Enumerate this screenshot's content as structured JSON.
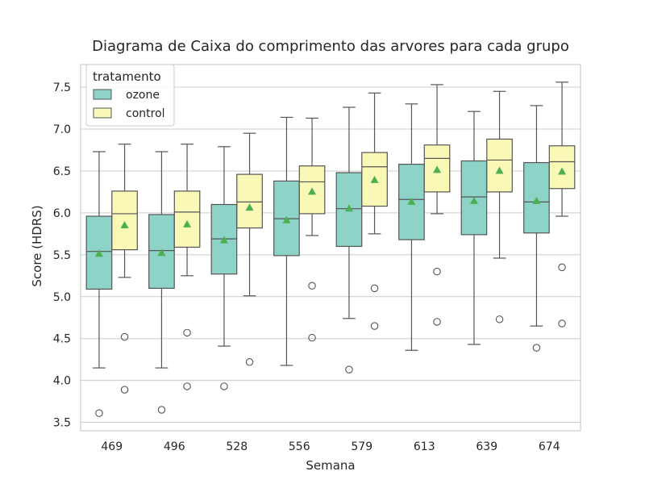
{
  "chart_data": {
    "type": "boxplot",
    "title": "Diagrama de Caixa do comprimento das arvores para cada grupo",
    "xlabel": "Semana",
    "ylabel": "Score (HDRS)",
    "ylim": [
      3.4,
      7.77
    ],
    "yticks": [
      "3.5",
      "4.0",
      "4.5",
      "5.0",
      "5.5",
      "6.0",
      "6.5",
      "7.0",
      "7.5"
    ],
    "grid": "horizontal",
    "legend_placement": "top-left",
    "legend_title": "tratamento",
    "categories": [
      "469",
      "496",
      "528",
      "556",
      "579",
      "613",
      "639",
      "674"
    ],
    "series": [
      {
        "name": "ozone",
        "color": "#8dd3c7",
        "boxes": [
          {
            "whislo": 4.15,
            "q1": 5.09,
            "med": 5.54,
            "q3": 5.96,
            "whishi": 6.73,
            "mean": 5.51,
            "fliers": [
              3.61
            ]
          },
          {
            "whislo": 4.15,
            "q1": 5.1,
            "med": 5.55,
            "q3": 5.98,
            "whishi": 6.73,
            "mean": 5.52,
            "fliers": [
              3.65
            ]
          },
          {
            "whislo": 4.41,
            "q1": 5.27,
            "med": 5.69,
            "q3": 6.1,
            "whishi": 6.79,
            "mean": 5.67,
            "fliers": [
              3.93
            ]
          },
          {
            "whislo": 4.18,
            "q1": 5.49,
            "med": 5.93,
            "q3": 6.38,
            "whishi": 7.14,
            "mean": 5.91,
            "fliers": []
          },
          {
            "whislo": 4.74,
            "q1": 5.6,
            "med": 6.05,
            "q3": 6.48,
            "whishi": 7.26,
            "mean": 6.05,
            "fliers": [
              4.13
            ]
          },
          {
            "whislo": 4.36,
            "q1": 5.68,
            "med": 6.16,
            "q3": 6.58,
            "whishi": 7.3,
            "mean": 6.13,
            "fliers": []
          },
          {
            "whislo": 4.43,
            "q1": 5.74,
            "med": 6.19,
            "q3": 6.62,
            "whishi": 7.21,
            "mean": 6.14,
            "fliers": []
          },
          {
            "whislo": 4.65,
            "q1": 5.76,
            "med": 6.13,
            "q3": 6.6,
            "whishi": 7.28,
            "mean": 6.14,
            "fliers": [
              4.39
            ]
          }
        ]
      },
      {
        "name": "control",
        "color": "#f9f8b6",
        "boxes": [
          {
            "whislo": 5.23,
            "q1": 5.56,
            "med": 5.99,
            "q3": 6.26,
            "whishi": 6.82,
            "mean": 5.85,
            "fliers": [
              4.52,
              3.89
            ]
          },
          {
            "whislo": 5.25,
            "q1": 5.59,
            "med": 6.01,
            "q3": 6.26,
            "whishi": 6.82,
            "mean": 5.86,
            "fliers": [
              4.57,
              3.93
            ]
          },
          {
            "whislo": 5.01,
            "q1": 5.82,
            "med": 6.13,
            "q3": 6.46,
            "whishi": 6.95,
            "mean": 6.06,
            "fliers": [
              4.22
            ]
          },
          {
            "whislo": 5.73,
            "q1": 5.99,
            "med": 6.37,
            "q3": 6.56,
            "whishi": 7.13,
            "mean": 6.25,
            "fliers": [
              5.13,
              4.51
            ]
          },
          {
            "whislo": 5.75,
            "q1": 6.08,
            "med": 6.55,
            "q3": 6.72,
            "whishi": 7.43,
            "mean": 6.39,
            "fliers": [
              5.1,
              4.65
            ]
          },
          {
            "whislo": 5.99,
            "q1": 6.25,
            "med": 6.65,
            "q3": 6.81,
            "whishi": 7.53,
            "mean": 6.51,
            "fliers": [
              5.3,
              4.7
            ]
          },
          {
            "whislo": 5.46,
            "q1": 6.25,
            "med": 6.63,
            "q3": 6.88,
            "whishi": 7.45,
            "mean": 6.5,
            "fliers": [
              4.73
            ]
          },
          {
            "whislo": 5.96,
            "q1": 6.29,
            "med": 6.61,
            "q3": 6.8,
            "whishi": 7.56,
            "mean": 6.49,
            "fliers": [
              5.35,
              4.68
            ]
          }
        ]
      }
    ]
  },
  "colors": {
    "grid": "#cccccc",
    "box_edge": "#555555",
    "mean_marker": "#4caf50",
    "frame": "#cccccc"
  }
}
